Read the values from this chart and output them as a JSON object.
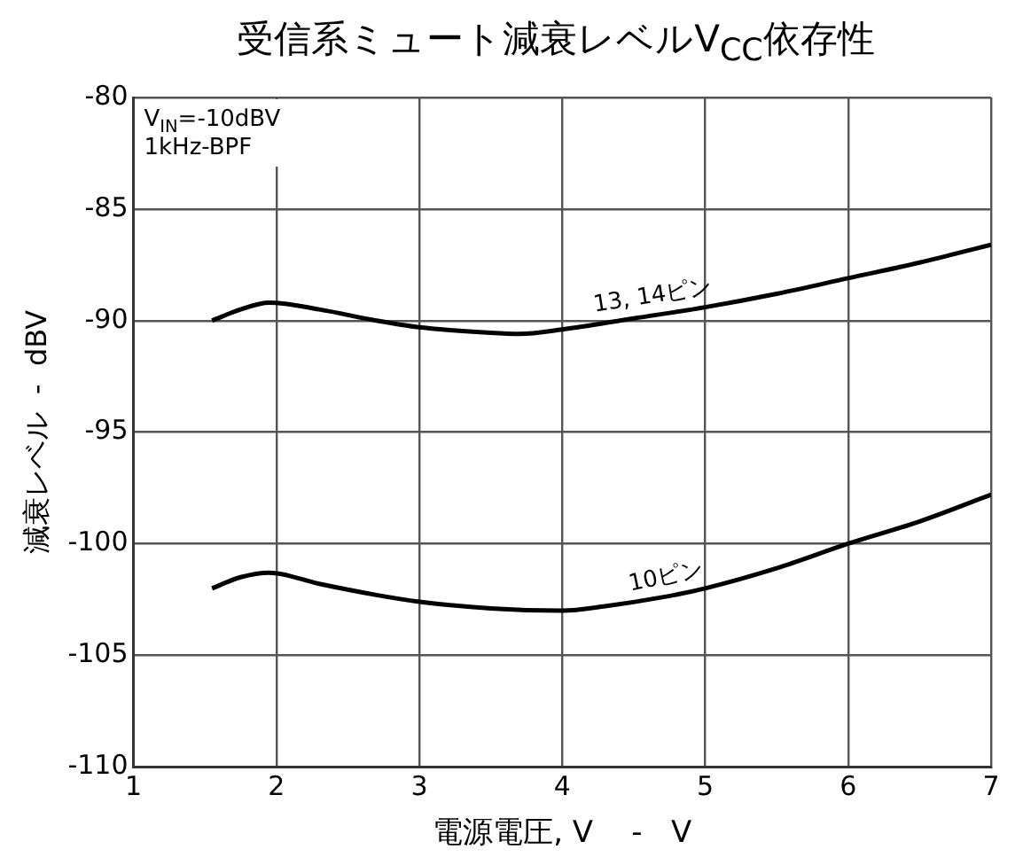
{
  "chart_data": {
    "type": "line",
    "title": "受信系ミュート減衰レベルV$_{CC}$依存性",
    "xlabel": "電源電圧, V    -   V",
    "ylabel": "減衰レベル  -  dBV",
    "annotations": [
      "V$_{IN}$=-10dBV",
      "1kHz-BPF"
    ],
    "xlim": [
      1,
      7
    ],
    "xticks": [
      1,
      2,
      3,
      4,
      5,
      6,
      7
    ],
    "ylim": [
      -110,
      -80
    ],
    "yticks": [
      -110,
      -105,
      -100,
      -95,
      -90,
      -85,
      -80
    ],
    "grid": true,
    "legend": false,
    "marker": "none",
    "line_style": "solid",
    "series": [
      {
        "name": "13, 14ピン",
        "color": "#000000",
        "x": [
          1.55,
          1.75,
          1.95,
          2.3,
          2.7,
          3,
          3.5,
          3.7,
          4,
          4.5,
          5,
          5.5,
          6,
          6.5,
          7
        ],
        "values": [
          -90.0,
          -89.5,
          -89.2,
          -89.5,
          -90.0,
          -90.3,
          -90.55,
          -90.6,
          -90.4,
          -89.9,
          -89.4,
          -88.8,
          -88.1,
          -87.4,
          -86.6
        ]
      },
      {
        "name": "10ピン",
        "color": "#000000",
        "x": [
          1.55,
          1.75,
          1.95,
          2.3,
          2.7,
          3,
          3.5,
          4,
          4.3,
          4.7,
          5,
          5.5,
          6,
          6.5,
          7
        ],
        "values": [
          -102.0,
          -101.5,
          -101.3,
          -101.8,
          -102.3,
          -102.6,
          -102.9,
          -103.0,
          -102.8,
          -102.4,
          -102.0,
          -101.1,
          -100.0,
          -99.0,
          -97.8
        ]
      }
    ]
  }
}
